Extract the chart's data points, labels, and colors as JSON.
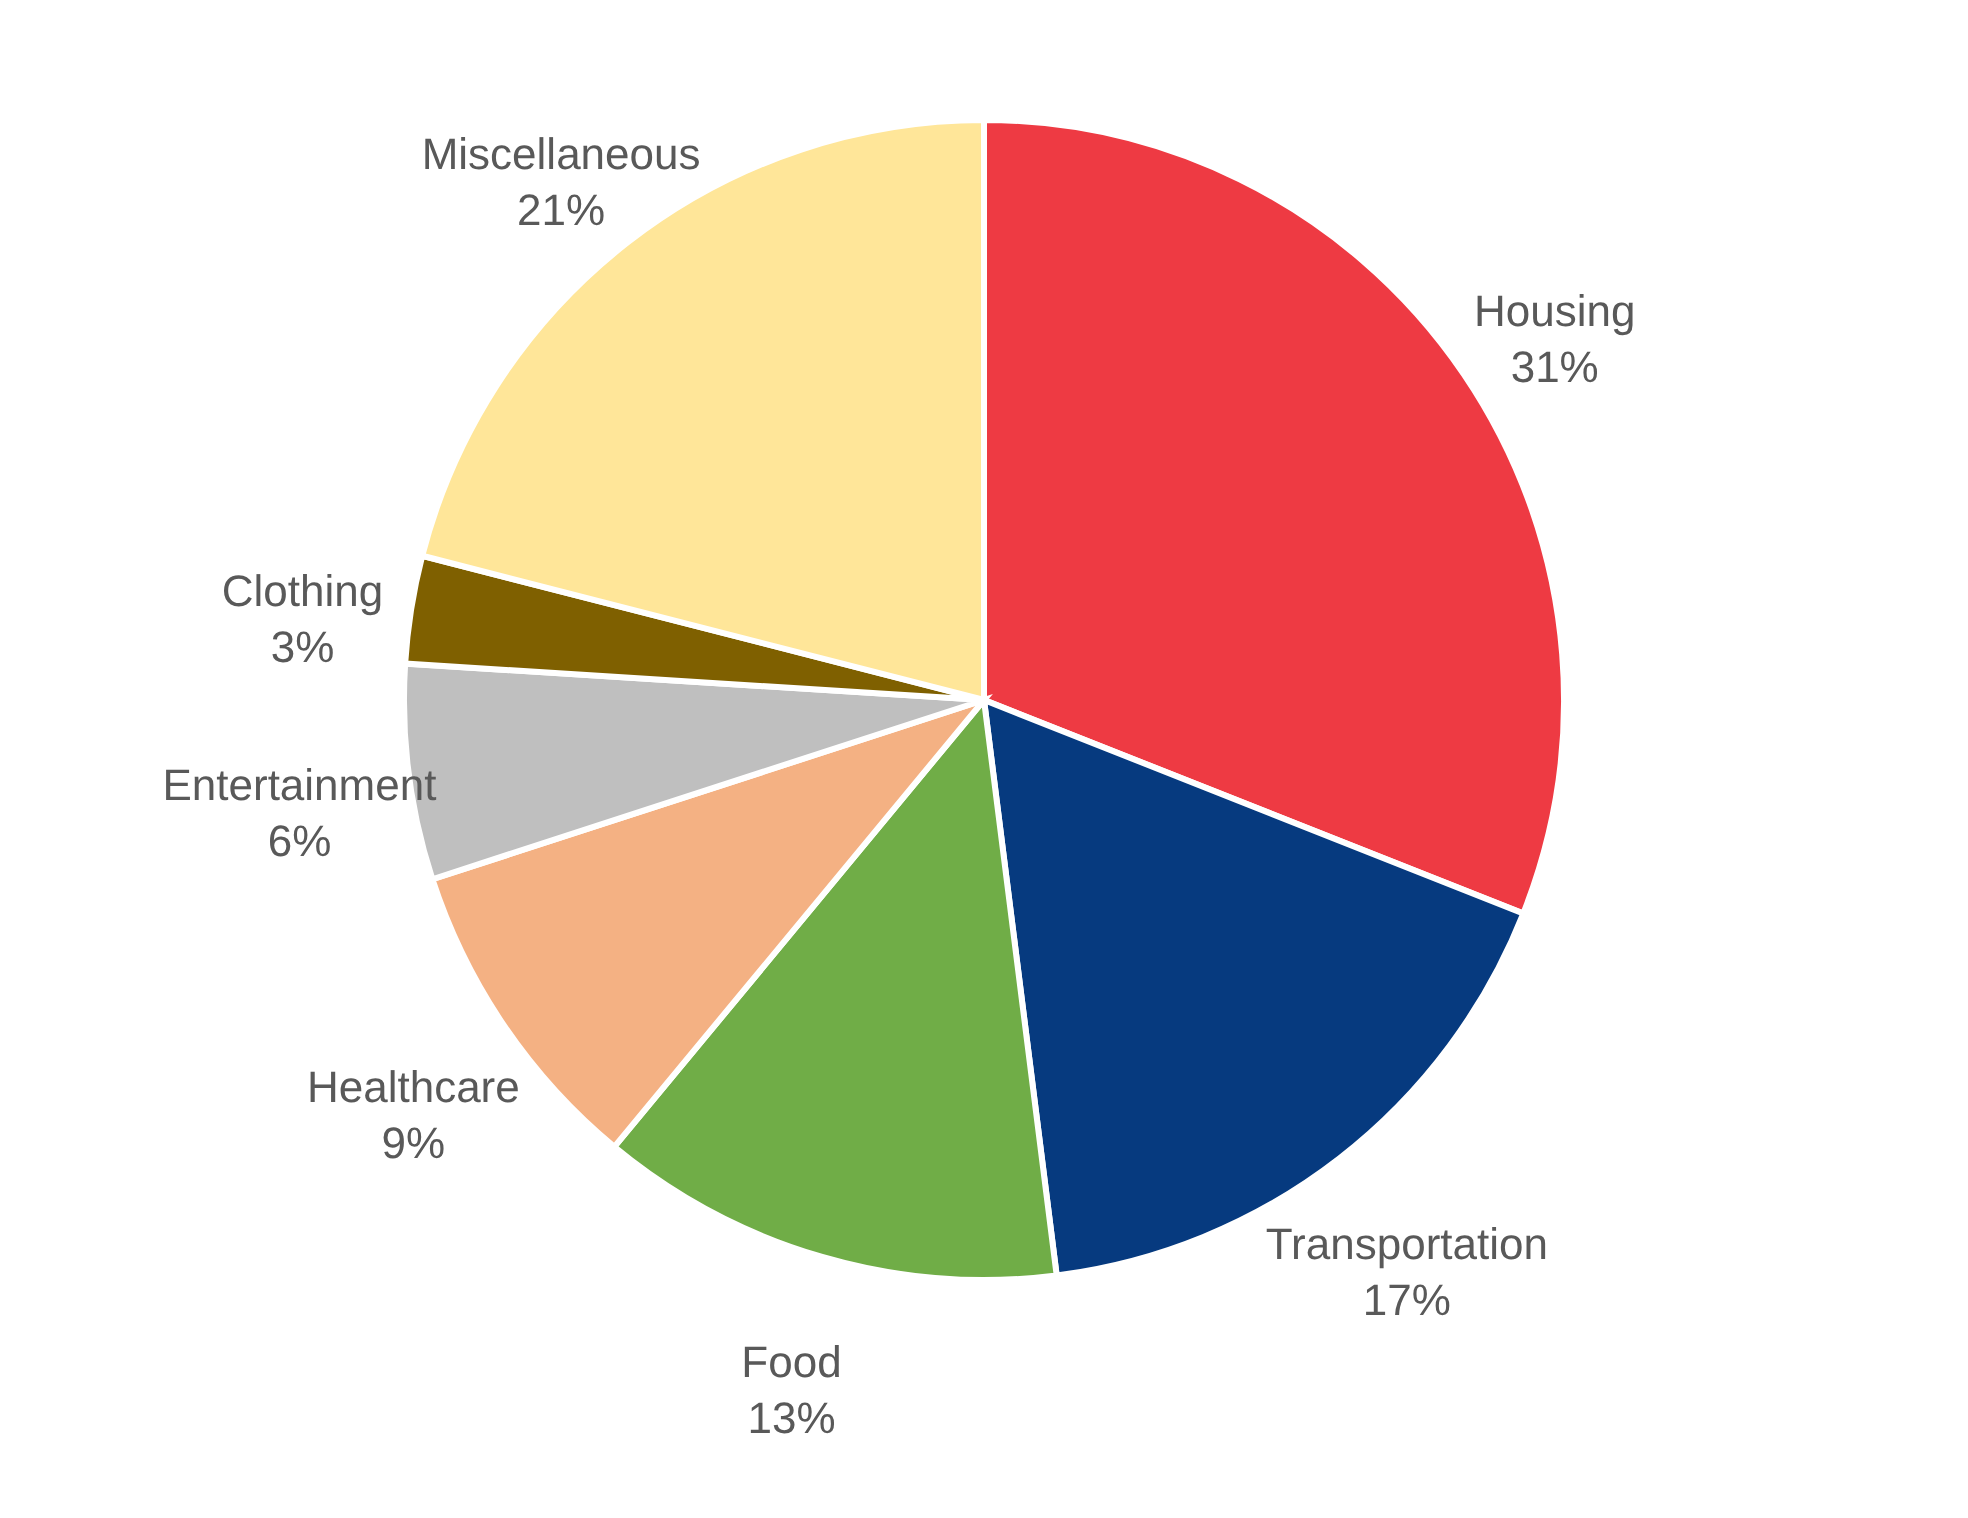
{
  "chart_data": {
    "type": "pie",
    "categories": [
      "Housing",
      "Transportation",
      "Food",
      "Healthcare",
      "Entertainment",
      "Clothing",
      "Miscellaneous"
    ],
    "values": [
      31,
      17,
      13,
      9,
      6,
      3,
      21
    ],
    "value_labels": [
      "31%",
      "17%",
      "13%",
      "9%",
      "6%",
      "3%",
      "21%"
    ],
    "colors": [
      "#ee3a43",
      "#063a7f",
      "#70ad47",
      "#f4b183",
      "#bfbfbf",
      "#7f6000",
      "#ffe699"
    ]
  }
}
